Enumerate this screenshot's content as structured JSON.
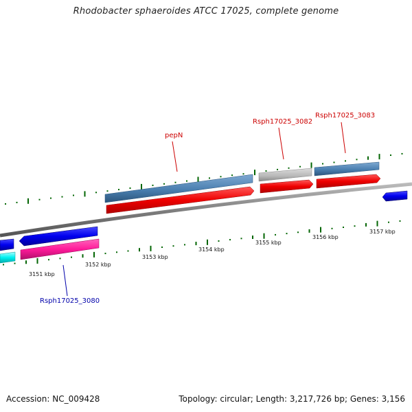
{
  "title": "Rhodobacter sphaeroides ATCC 17025, complete genome",
  "footer": {
    "accession": "Accession: NC_009428",
    "summary": "Topology: circular; Length: 3,217,726 bp; Genes: 3,156"
  },
  "tick_labels": [
    "3151 kbp",
    "3152 kbp",
    "3153 kbp",
    "3154 kbp",
    "3155 kbp",
    "3156 kbp",
    "3157 kbp"
  ],
  "gene_labels": [
    {
      "text": "pepN",
      "color": "#cc0000"
    },
    {
      "text": "Rsph17025_3082",
      "color": "#cc0000"
    },
    {
      "text": "Rsph17025_3083",
      "color": "#cc0000"
    },
    {
      "text": "Rsph17025_3080",
      "color": "#0000aa"
    }
  ],
  "colors": {
    "cds": "#ff0000",
    "gene": "#4682b4",
    "pseudo": "#bbbbbb",
    "reverse_cds": "#0000ff",
    "reverse_rna": "#ff1493",
    "other": "#00ffff",
    "backbone": "#888888",
    "ticks": "#006400"
  }
}
